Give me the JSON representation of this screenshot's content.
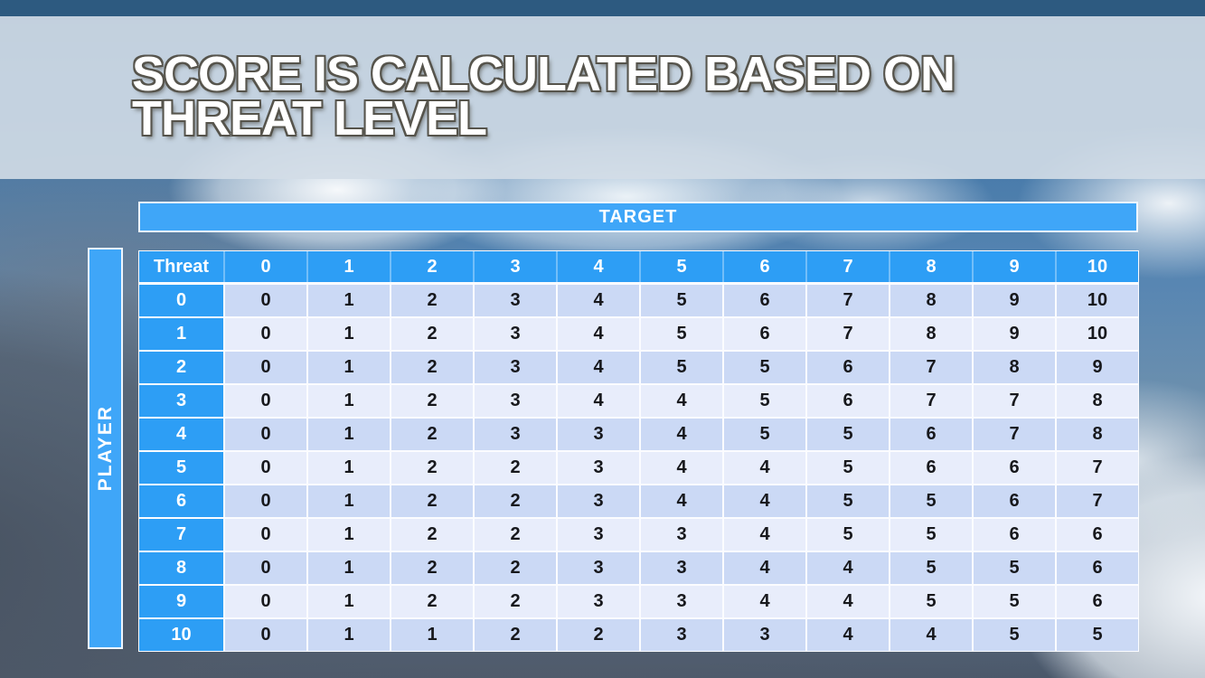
{
  "slide": {
    "title": "SCORE IS CALCULATED BASED ON\nTHREAT LEVEL"
  },
  "matrix": {
    "target_label": "TARGET",
    "player_label": "PLAYER",
    "corner_label": "Threat",
    "column_headers": [
      "0",
      "1",
      "2",
      "3",
      "4",
      "5",
      "6",
      "7",
      "8",
      "9",
      "10"
    ],
    "rows": [
      {
        "threat": "0",
        "values": [
          "0",
          "1",
          "2",
          "3",
          "4",
          "5",
          "6",
          "7",
          "8",
          "9",
          "10"
        ]
      },
      {
        "threat": "1",
        "values": [
          "0",
          "1",
          "2",
          "3",
          "4",
          "5",
          "6",
          "7",
          "8",
          "9",
          "10"
        ]
      },
      {
        "threat": "2",
        "values": [
          "0",
          "1",
          "2",
          "3",
          "4",
          "5",
          "5",
          "6",
          "7",
          "8",
          "9"
        ]
      },
      {
        "threat": "3",
        "values": [
          "0",
          "1",
          "2",
          "3",
          "4",
          "4",
          "5",
          "6",
          "7",
          "7",
          "8"
        ]
      },
      {
        "threat": "4",
        "values": [
          "0",
          "1",
          "2",
          "3",
          "3",
          "4",
          "5",
          "5",
          "6",
          "7",
          "8"
        ]
      },
      {
        "threat": "5",
        "values": [
          "0",
          "1",
          "2",
          "2",
          "3",
          "4",
          "4",
          "5",
          "6",
          "6",
          "7"
        ]
      },
      {
        "threat": "6",
        "values": [
          "0",
          "1",
          "2",
          "2",
          "3",
          "4",
          "4",
          "5",
          "5",
          "6",
          "7"
        ]
      },
      {
        "threat": "7",
        "values": [
          "0",
          "1",
          "2",
          "2",
          "3",
          "3",
          "4",
          "5",
          "5",
          "6",
          "6"
        ]
      },
      {
        "threat": "8",
        "values": [
          "0",
          "1",
          "2",
          "2",
          "3",
          "3",
          "4",
          "4",
          "5",
          "5",
          "6"
        ]
      },
      {
        "threat": "9",
        "values": [
          "0",
          "1",
          "2",
          "2",
          "3",
          "3",
          "4",
          "4",
          "5",
          "5",
          "6"
        ]
      },
      {
        "threat": "10",
        "values": [
          "0",
          "1",
          "1",
          "2",
          "2",
          "3",
          "3",
          "4",
          "4",
          "5",
          "5"
        ]
      }
    ]
  },
  "colors": {
    "top_strip": "#2d5a80",
    "axis_bar_blue": "#3fa6f8",
    "header_blue": "#2d9ef5",
    "row_even": "#cbd9f5",
    "row_odd": "#e8edfb",
    "value_text": "#17181c",
    "title_text": "#ffffff"
  }
}
